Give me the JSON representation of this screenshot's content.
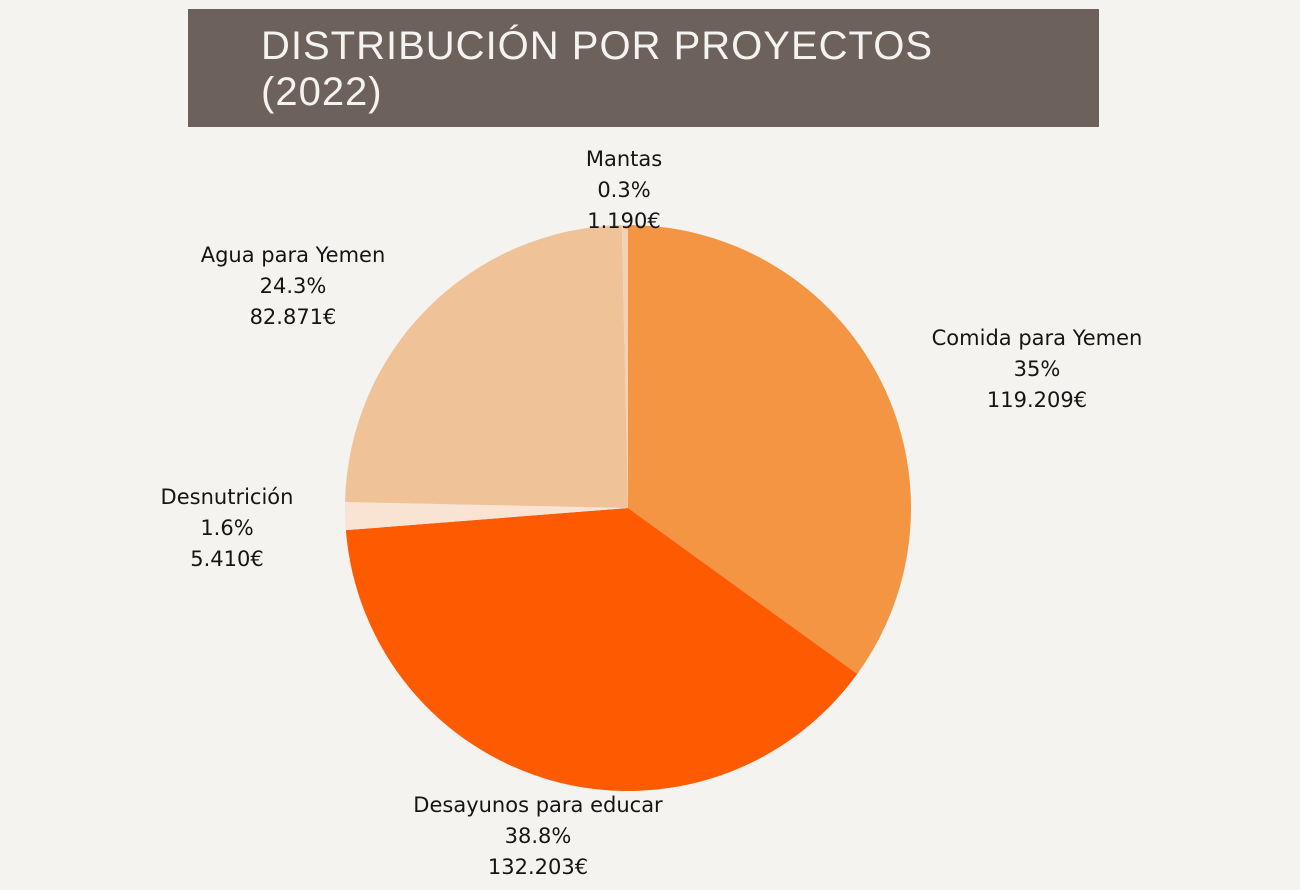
{
  "title": {
    "line1": "DISTRIBUCIÓN POR PROYECTOS",
    "line2": "(2022)"
  },
  "colors": {
    "background": "#f4f3ef",
    "title_bar": "#6d615c",
    "title_text": "#f4f3ef"
  },
  "chart_data": {
    "type": "pie",
    "title": "DISTRIBUCIÓN POR PROYECTOS (2022)",
    "start": "12 o'clock",
    "direction": "clockwise",
    "categories": [
      "Comida para Yemen",
      "Desayunos para educar",
      "Desnutrición",
      "Agua para Yemen",
      "Mantas"
    ],
    "values": [
      119209,
      132203,
      5410,
      82871,
      1190
    ],
    "percent_labels": [
      "35%",
      "38.8%",
      "1.6%",
      "24.3%",
      "0.3%"
    ],
    "amount_labels": [
      "119.209€",
      "132.203€",
      "5.410€",
      "82.871€",
      "1.190€"
    ],
    "colors": [
      "#f39542",
      "#fe5a02",
      "#f9e3d3",
      "#efc298",
      "#f4d1b2"
    ],
    "legend": "none"
  }
}
